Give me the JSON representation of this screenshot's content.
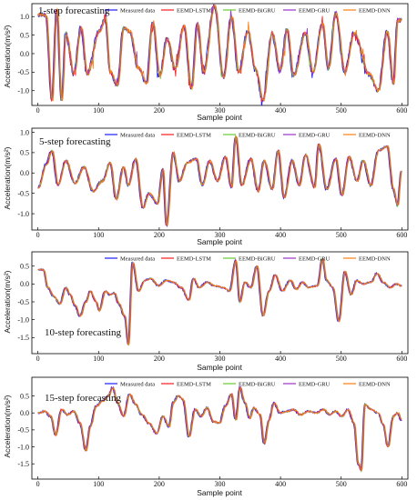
{
  "chart_data": [
    {
      "type": "line",
      "title": "1-step forecasting",
      "xlabel": "Sample point",
      "ylabel": "Acceleration(m/s²)",
      "xlim": [
        -10,
        610
      ],
      "ylim": [
        -1.4,
        1.35
      ],
      "xticks": [
        0,
        100,
        200,
        300,
        400,
        500,
        600
      ],
      "yticks": [
        1.0,
        0.5,
        0.0,
        -0.5,
        -1.0
      ],
      "ytick_labels": [
        "1.0",
        "0.5",
        "0.0",
        "-0.5",
        "-1.0"
      ],
      "legend_position": "top",
      "series": [
        {
          "name": "Measured data",
          "color": "#1a1aff"
        },
        {
          "name": "EEMD-LSTM",
          "color": "#ff1a1a"
        },
        {
          "name": "EEMD-BiGRU",
          "color": "#66cc33"
        },
        {
          "name": "EEMD-GRU",
          "color": "#9933cc"
        },
        {
          "name": "EEMD-DNN",
          "color": "#ff7f0e"
        }
      ],
      "peaks": [
        [
          12,
          1.05
        ],
        [
          22,
          -1.25
        ],
        [
          30,
          1.2
        ],
        [
          38,
          -1.25
        ],
        [
          45,
          0.55
        ],
        [
          58,
          -0.55
        ],
        [
          70,
          0.7
        ],
        [
          80,
          -0.55
        ],
        [
          100,
          0.6
        ],
        [
          110,
          0.95
        ],
        [
          118,
          -0.5
        ],
        [
          130,
          -0.85
        ],
        [
          140,
          0.7
        ],
        [
          150,
          0.6
        ],
        [
          165,
          -0.4
        ],
        [
          178,
          -0.8
        ],
        [
          188,
          0.85
        ],
        [
          200,
          -0.6
        ],
        [
          212,
          0.4
        ],
        [
          225,
          -0.4
        ],
        [
          240,
          0.75
        ],
        [
          252,
          -0.95
        ],
        [
          262,
          0.8
        ],
        [
          272,
          -0.5
        ],
        [
          290,
          1.3
        ],
        [
          305,
          -0.65
        ],
        [
          318,
          1.0
        ],
        [
          330,
          -0.5
        ],
        [
          345,
          0.6
        ],
        [
          358,
          -0.45
        ],
        [
          370,
          -1.25
        ],
        [
          385,
          0.55
        ],
        [
          398,
          -0.45
        ],
        [
          410,
          0.65
        ],
        [
          420,
          -0.6
        ],
        [
          440,
          0.55
        ],
        [
          452,
          -0.5
        ],
        [
          468,
          0.8
        ],
        [
          478,
          -0.4
        ],
        [
          490,
          1.1
        ],
        [
          505,
          -0.5
        ],
        [
          520,
          0.55
        ],
        [
          545,
          -0.55
        ],
        [
          560,
          -1.0
        ],
        [
          575,
          0.6
        ],
        [
          585,
          -0.8
        ],
        [
          592,
          0.9
        ]
      ],
      "noise": 0.1
    },
    {
      "type": "line",
      "title": "5-step forecasting",
      "xlabel": "Sample point",
      "ylabel": "Acceleration(m/s²)",
      "xlim": [
        -10,
        610
      ],
      "ylim": [
        -1.4,
        1.1
      ],
      "xticks": [
        0,
        100,
        200,
        300,
        400,
        500,
        600
      ],
      "yticks": [
        1.0,
        0.5,
        0.0,
        -0.5,
        -1.0
      ],
      "ytick_labels": [
        "1.0",
        "0.5",
        "0.0",
        "-0.5",
        "-1.0"
      ],
      "legend_position": "top",
      "series": [
        {
          "name": "Measured data",
          "color": "#1a1aff"
        },
        {
          "name": "EEMD-LSTM",
          "color": "#ff1a1a"
        },
        {
          "name": "EEMD-BiGRU",
          "color": "#66cc33"
        },
        {
          "name": "EEMD-GRU",
          "color": "#9933cc"
        },
        {
          "name": "EEMD-DNN",
          "color": "#ff7f0e"
        }
      ],
      "peaks": [
        [
          0,
          -0.35
        ],
        [
          12,
          0.2
        ],
        [
          22,
          0.55
        ],
        [
          32,
          -0.3
        ],
        [
          45,
          0.3
        ],
        [
          60,
          -0.25
        ],
        [
          75,
          0.15
        ],
        [
          90,
          -0.45
        ],
        [
          105,
          -0.2
        ],
        [
          118,
          0.25
        ],
        [
          128,
          -0.65
        ],
        [
          140,
          0.15
        ],
        [
          148,
          -0.3
        ],
        [
          160,
          0.35
        ],
        [
          172,
          -0.85
        ],
        [
          182,
          -0.5
        ],
        [
          196,
          -0.75
        ],
        [
          205,
          0.1
        ],
        [
          211,
          -1.3
        ],
        [
          222,
          0.5
        ],
        [
          232,
          -0.2
        ],
        [
          245,
          0.25
        ],
        [
          260,
          0.35
        ],
        [
          270,
          -0.3
        ],
        [
          282,
          0.3
        ],
        [
          295,
          -0.2
        ],
        [
          308,
          0.4
        ],
        [
          318,
          -0.35
        ],
        [
          325,
          0.9
        ],
        [
          335,
          -0.3
        ],
        [
          350,
          0.35
        ],
        [
          362,
          -0.45
        ],
        [
          372,
          0.3
        ],
        [
          385,
          -0.4
        ],
        [
          395,
          0.55
        ],
        [
          405,
          -0.6
        ],
        [
          418,
          0.3
        ],
        [
          430,
          -0.3
        ],
        [
          440,
          0.45
        ],
        [
          455,
          -0.35
        ],
        [
          462,
          0.7
        ],
        [
          475,
          -0.4
        ],
        [
          490,
          0.35
        ],
        [
          500,
          -0.55
        ],
        [
          512,
          0.4
        ],
        [
          525,
          -0.2
        ],
        [
          535,
          0.3
        ],
        [
          548,
          -0.3
        ],
        [
          560,
          0.55
        ],
        [
          575,
          0.65
        ],
        [
          585,
          -0.4
        ],
        [
          592,
          -0.8
        ],
        [
          598,
          0.05
        ]
      ],
      "noise": 0.05
    },
    {
      "type": "line",
      "title": "10-step forecasting",
      "xlabel": "Sample point",
      "ylabel": "Acceleration(m/s²)",
      "xlim": [
        -10,
        610
      ],
      "ylim": [
        -1.95,
        0.9
      ],
      "xticks": [
        0,
        100,
        200,
        300,
        400,
        500,
        600
      ],
      "yticks": [
        0.5,
        0.0,
        -0.5,
        -1.0,
        -1.5
      ],
      "ytick_labels": [
        "0.5",
        "0.0",
        "-0.5",
        "-1.0",
        "-1.5"
      ],
      "legend_position": "top",
      "series": [
        {
          "name": "Measured data",
          "color": "#1a1aff"
        },
        {
          "name": "EEMD-LSTM",
          "color": "#ff1a1a"
        },
        {
          "name": "EEMD-BiGRU",
          "color": "#66cc33"
        },
        {
          "name": "EEMD-GRU",
          "color": "#9933cc"
        },
        {
          "name": "EEMD-DNN",
          "color": "#ff7f0e"
        }
      ],
      "peaks": [
        [
          0,
          0.4
        ],
        [
          8,
          0.4
        ],
        [
          15,
          -0.1
        ],
        [
          25,
          -0.35
        ],
        [
          35,
          -0.55
        ],
        [
          45,
          -0.1
        ],
        [
          52,
          -0.3
        ],
        [
          60,
          -0.6
        ],
        [
          68,
          -0.9
        ],
        [
          78,
          -0.5
        ],
        [
          85,
          -0.2
        ],
        [
          95,
          -0.5
        ],
        [
          100,
          -0.75
        ],
        [
          110,
          -0.2
        ],
        [
          118,
          -0.3
        ],
        [
          125,
          -0.25
        ],
        [
          132,
          -0.55
        ],
        [
          142,
          -0.9
        ],
        [
          148,
          -1.7
        ],
        [
          155,
          0.6
        ],
        [
          165,
          -0.2
        ],
        [
          175,
          0.1
        ],
        [
          185,
          0.15
        ],
        [
          198,
          -0.05
        ],
        [
          210,
          0.1
        ],
        [
          222,
          0.05
        ],
        [
          235,
          -0.1
        ],
        [
          248,
          -0.45
        ],
        [
          255,
          0.15
        ],
        [
          265,
          -0.1
        ],
        [
          278,
          0.05
        ],
        [
          290,
          -0.05
        ],
        [
          305,
          -0.1
        ],
        [
          315,
          -0.2
        ],
        [
          325,
          0.65
        ],
        [
          332,
          -0.5
        ],
        [
          340,
          0.05
        ],
        [
          350,
          -0.1
        ],
        [
          360,
          0.5
        ],
        [
          370,
          -0.9
        ],
        [
          380,
          -0.2
        ],
        [
          390,
          0.25
        ],
        [
          402,
          -0.2
        ],
        [
          415,
          0.1
        ],
        [
          425,
          -0.15
        ],
        [
          435,
          0.05
        ],
        [
          445,
          -0.1
        ],
        [
          460,
          -0.05
        ],
        [
          468,
          0.7
        ],
        [
          475,
          0.1
        ],
        [
          485,
          -0.1
        ],
        [
          495,
          -1.05
        ],
        [
          505,
          0.35
        ],
        [
          515,
          -0.3
        ],
        [
          525,
          0.1
        ],
        [
          535,
          0.0
        ],
        [
          548,
          0.05
        ],
        [
          558,
          0.3
        ],
        [
          568,
          0.05
        ],
        [
          580,
          -0.1
        ],
        [
          590,
          0.0
        ],
        [
          598,
          -0.05
        ]
      ],
      "noise": 0.04
    },
    {
      "type": "line",
      "title": "15-step forecasting",
      "xlabel": "Sample point",
      "ylabel": "Acceleration(m/s²)",
      "xlim": [
        -10,
        610
      ],
      "ylim": [
        -1.95,
        1.05
      ],
      "xticks": [
        0,
        100,
        200,
        300,
        400,
        500,
        600
      ],
      "yticks": [
        0.5,
        0.0,
        -0.5,
        -1.0,
        -1.5
      ],
      "ytick_labels": [
        "0.5",
        "0.0",
        "-0.5",
        "-1.0",
        "-1.5"
      ],
      "legend_position": "top",
      "series": [
        {
          "name": "Measured data",
          "color": "#1a1aff"
        },
        {
          "name": "EEMD-LSTM",
          "color": "#ff1a1a"
        },
        {
          "name": "EEMD-BiGRU",
          "color": "#66cc33"
        },
        {
          "name": "EEMD-GRU",
          "color": "#9933cc"
        },
        {
          "name": "EEMD-DNN",
          "color": "#ff7f0e"
        }
      ],
      "peaks": [
        [
          0,
          0.0
        ],
        [
          10,
          0.05
        ],
        [
          20,
          -0.1
        ],
        [
          28,
          -0.65
        ],
        [
          38,
          0.1
        ],
        [
          48,
          -0.05
        ],
        [
          58,
          0.05
        ],
        [
          68,
          -0.3
        ],
        [
          78,
          -1.1
        ],
        [
          85,
          -0.4
        ],
        [
          95,
          0.2
        ],
        [
          105,
          0.35
        ],
        [
          115,
          0.5
        ],
        [
          122,
          0.75
        ],
        [
          130,
          0.3
        ],
        [
          140,
          -0.1
        ],
        [
          150,
          0.55
        ],
        [
          160,
          0.25
        ],
        [
          170,
          -0.05
        ],
        [
          182,
          -0.3
        ],
        [
          195,
          -0.6
        ],
        [
          205,
          -0.1
        ],
        [
          215,
          -0.4
        ],
        [
          222,
          0.3
        ],
        [
          230,
          0.5
        ],
        [
          238,
          0.4
        ],
        [
          248,
          -0.7
        ],
        [
          258,
          0.1
        ],
        [
          268,
          -0.1
        ],
        [
          278,
          0.15
        ],
        [
          288,
          -0.25
        ],
        [
          298,
          -0.3
        ],
        [
          308,
          0.2
        ],
        [
          318,
          0.55
        ],
        [
          325,
          -0.2
        ],
        [
          332,
          0.75
        ],
        [
          340,
          0.3
        ],
        [
          348,
          -0.15
        ],
        [
          355,
          0.15
        ],
        [
          365,
          -0.05
        ],
        [
          372,
          -0.9
        ],
        [
          380,
          -0.2
        ],
        [
          388,
          0.3
        ],
        [
          398,
          0.0
        ],
        [
          410,
          0.05
        ],
        [
          420,
          0.1
        ],
        [
          432,
          -0.05
        ],
        [
          445,
          0.05
        ],
        [
          458,
          0.0
        ],
        [
          470,
          0.1
        ],
        [
          480,
          -0.05
        ],
        [
          490,
          0.05
        ],
        [
          500,
          -0.1
        ],
        [
          510,
          0.1
        ],
        [
          520,
          -0.3
        ],
        [
          527,
          -1.5
        ],
        [
          532,
          -1.7
        ],
        [
          538,
          0.25
        ],
        [
          548,
          0.1
        ],
        [
          560,
          0.0
        ],
        [
          568,
          -0.35
        ],
        [
          576,
          -1.0
        ],
        [
          585,
          -0.1
        ],
        [
          592,
          0.0
        ],
        [
          598,
          -0.2
        ]
      ],
      "noise": 0.05
    }
  ]
}
